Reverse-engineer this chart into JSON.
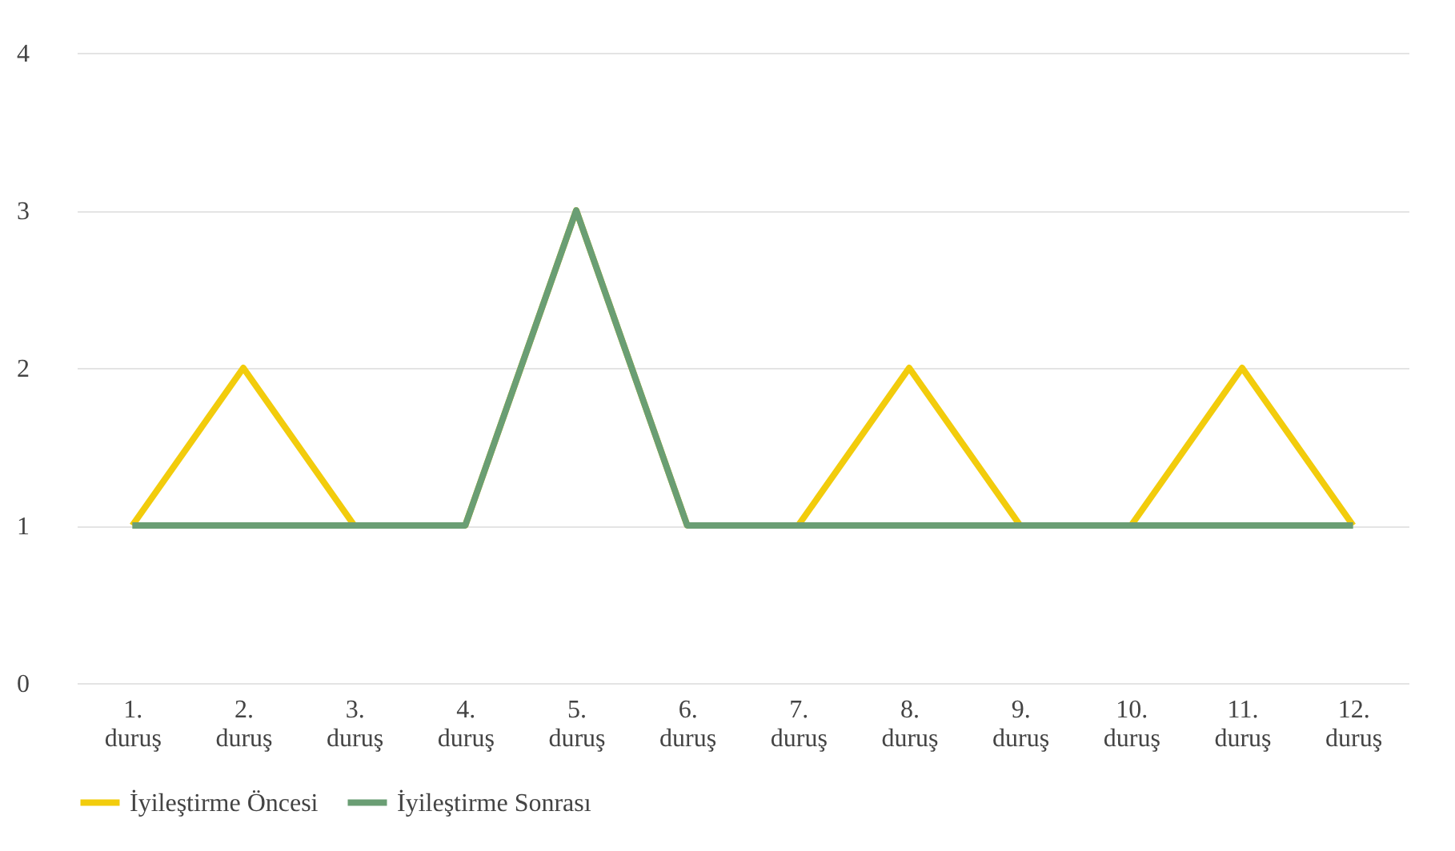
{
  "chart_data": {
    "type": "line",
    "categories": [
      "1. duruş",
      "2. duruş",
      "3. duruş",
      "4. duruş",
      "5. duruş",
      "6. duruş",
      "7. duruş",
      "8. duruş",
      "9. duruş",
      "10. duruş",
      "11. duruş",
      "12. duruş"
    ],
    "series": [
      {
        "name": "İyileştirme Öncesi",
        "color": "#f2cc0c",
        "values": [
          1,
          2,
          1,
          1,
          3,
          1,
          1,
          2,
          1,
          1,
          2,
          1
        ]
      },
      {
        "name": "İyileştirme Sonrası",
        "color": "#6a9e74",
        "values": [
          1,
          1,
          1,
          1,
          3,
          1,
          1,
          1,
          1,
          1,
          1,
          1
        ]
      }
    ],
    "ylim": [
      0,
      4
    ],
    "yticks": [
      0,
      1,
      2,
      3,
      4
    ],
    "grid": "y",
    "legend": "bottom",
    "marker": "none",
    "line_style": "solid"
  }
}
